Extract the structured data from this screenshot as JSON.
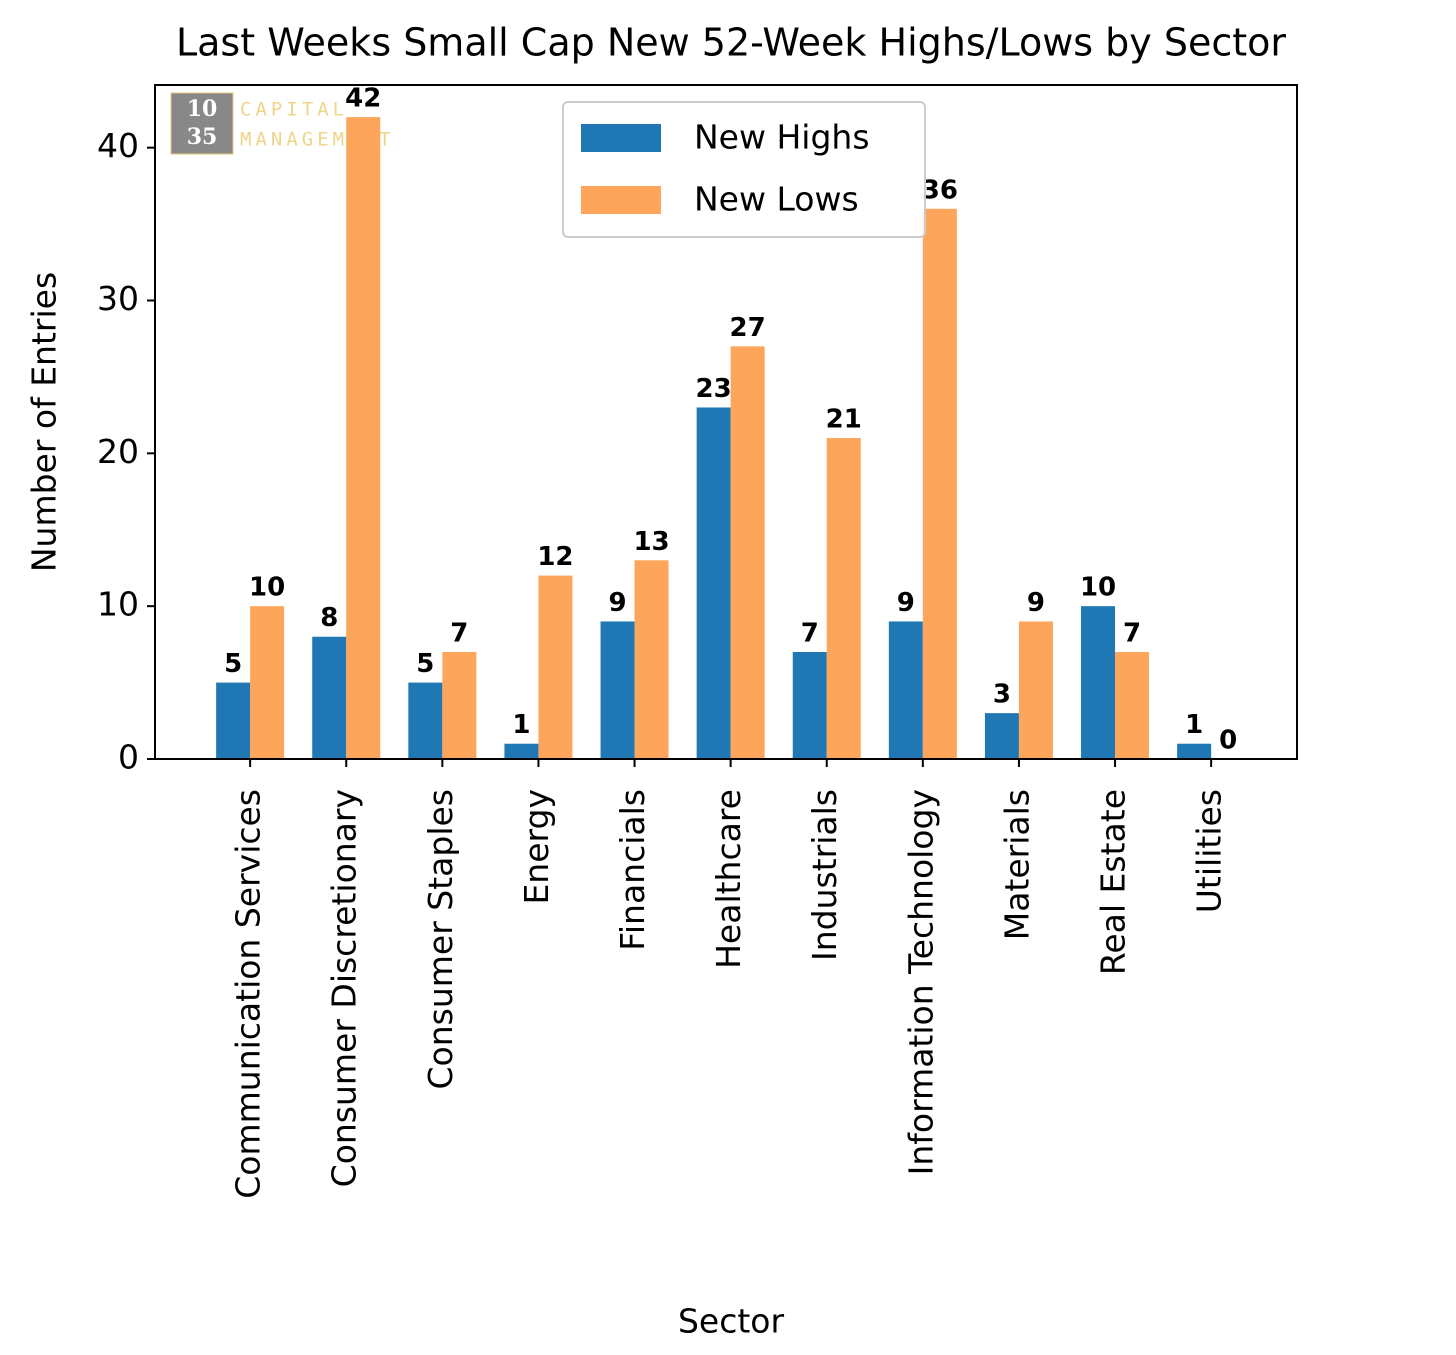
{
  "chart_data": {
    "type": "bar",
    "title": "Last Weeks Small Cap New 52-Week Highs/Lows by Sector",
    "x_label": "Sector",
    "y_label": "Number of Entries",
    "categories": [
      "Communication Services",
      "Consumer Discretionary",
      "Consumer Staples",
      "Energy",
      "Financials",
      "Healthcare",
      "Industrials",
      "Information Technology",
      "Materials",
      "Real Estate",
      "Utilities"
    ],
    "series": [
      {
        "name": "New Highs",
        "color": "#1f77b4",
        "values": [
          5,
          8,
          5,
          1,
          9,
          23,
          7,
          9,
          3,
          10,
          1
        ]
      },
      {
        "name": "New Lows",
        "color": "#fda55a",
        "values": [
          10,
          42,
          7,
          12,
          13,
          27,
          21,
          36,
          9,
          7,
          0
        ]
      }
    ],
    "ylim": [
      0,
      44.1
    ],
    "yticks": [
      0,
      10,
      20,
      30,
      40
    ],
    "grid": false,
    "legend": "upper center",
    "watermark": {
      "logo": [
        "10",
        "35"
      ],
      "text": [
        "CAPITAL",
        "MANAGEMENT"
      ]
    }
  }
}
